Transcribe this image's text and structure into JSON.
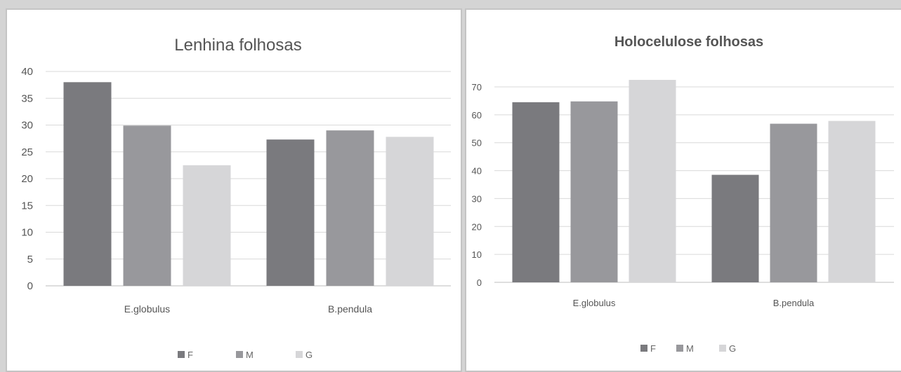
{
  "colors": {
    "F": "#7a7a7e",
    "M": "#98989c",
    "G": "#d6d6d8"
  },
  "chart_data": [
    {
      "type": "bar",
      "title": "Lenhina folhosas",
      "categories": [
        "E.globulus",
        "B.pendula"
      ],
      "series": [
        {
          "name": "F",
          "values": [
            38,
            27.3
          ]
        },
        {
          "name": "M",
          "values": [
            29.9,
            29
          ]
        },
        {
          "name": "G",
          "values": [
            22.5,
            27.8
          ]
        }
      ],
      "ylim": [
        0,
        40
      ],
      "yticks": [
        "0",
        "5",
        "10",
        "15",
        "20",
        "25",
        "30",
        "35",
        "40"
      ],
      "grid": true,
      "legend_position": "bottom"
    },
    {
      "type": "bar",
      "title": "Holocelulose folhosas",
      "categories": [
        "E.globulus",
        "B.pendula"
      ],
      "series": [
        {
          "name": "F",
          "values": [
            64.5,
            38.5
          ]
        },
        {
          "name": "M",
          "values": [
            64.8,
            56.8
          ]
        },
        {
          "name": "G",
          "values": [
            72.5,
            57.8
          ]
        }
      ],
      "ylim": [
        0,
        70
      ],
      "yticks": [
        "0",
        "10",
        "20",
        "30",
        "40",
        "50",
        "60",
        "70"
      ],
      "grid": true,
      "legend_position": "bottom"
    }
  ]
}
